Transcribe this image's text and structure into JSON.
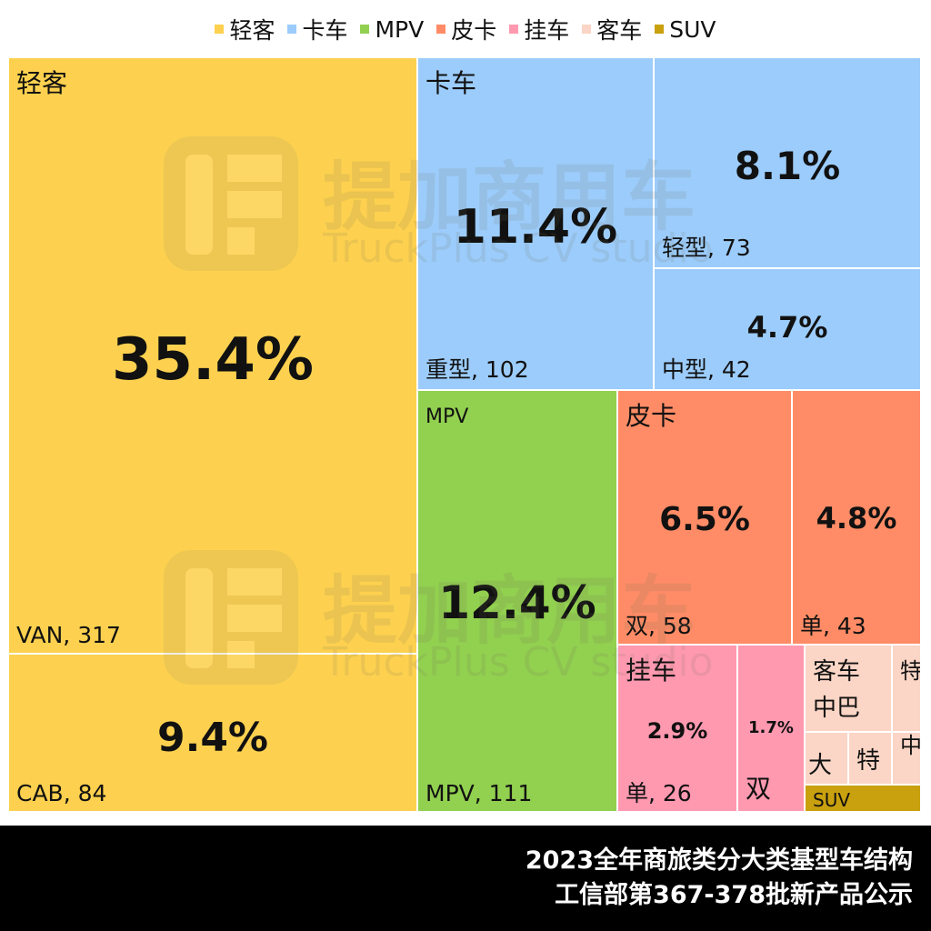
{
  "legend": [
    {
      "label": "轻客",
      "color": "#FDD14F"
    },
    {
      "label": "卡车",
      "color": "#9CCCFB"
    },
    {
      "label": "MPV",
      "color": "#92D050"
    },
    {
      "label": "皮卡",
      "color": "#FF8C66"
    },
    {
      "label": "挂车",
      "color": "#FF99B0"
    },
    {
      "label": "客车",
      "color": "#FBD5C5"
    },
    {
      "label": "SUV",
      "color": "#C9A00E"
    }
  ],
  "chart_data": {
    "type": "treemap",
    "groups": [
      {
        "name": "轻客",
        "color": "#FDD14F",
        "leaves": [
          {
            "label": "VAN, 317",
            "name": "VAN",
            "value": 317,
            "pct": "35.4%"
          },
          {
            "label": "CAB, 84",
            "name": "CAB",
            "value": 84,
            "pct": "9.4%"
          }
        ]
      },
      {
        "name": "卡车",
        "color": "#9CCCFB",
        "leaves": [
          {
            "label": "重型, 102",
            "name": "重型",
            "value": 102,
            "pct": "11.4%"
          },
          {
            "label": "轻型, 73",
            "name": "轻型",
            "value": 73,
            "pct": "8.1%"
          },
          {
            "label": "中型, 42",
            "name": "中型",
            "value": 42,
            "pct": "4.7%"
          }
        ]
      },
      {
        "name": "MPV",
        "color": "#92D050",
        "leaves": [
          {
            "label": "MPV, 111",
            "name": "MPV",
            "value": 111,
            "pct": "12.4%"
          }
        ]
      },
      {
        "name": "皮卡",
        "color": "#FF8C66",
        "leaves": [
          {
            "label": "双, 58",
            "name": "双",
            "value": 58,
            "pct": "6.5%"
          },
          {
            "label": "单, 43",
            "name": "单",
            "value": 43,
            "pct": "4.8%"
          }
        ]
      },
      {
        "name": "挂车",
        "color": "#FF99B0",
        "leaves": [
          {
            "label": "单, 26",
            "name": "单",
            "value": 26,
            "pct": "2.9%"
          },
          {
            "label": "双",
            "name": "双",
            "value": null,
            "pct": "1.7%"
          }
        ]
      },
      {
        "name": "客车",
        "color": "#FBD5C5",
        "leaves": [
          {
            "label": "中巴"
          },
          {
            "label": "特种"
          },
          {
            "label": "大"
          },
          {
            "label": "特"
          },
          {
            "label": "中校"
          }
        ]
      },
      {
        "name": "SUV",
        "color": "#C9A00E",
        "leaves": []
      }
    ]
  },
  "watermark": {
    "brand": "提加商用车",
    "sub": "TruckPlus CV studio"
  },
  "footer": {
    "line1": "2023全年商旅类分大类基型车结构",
    "line2": "工信部第367-378批新产品公示"
  }
}
